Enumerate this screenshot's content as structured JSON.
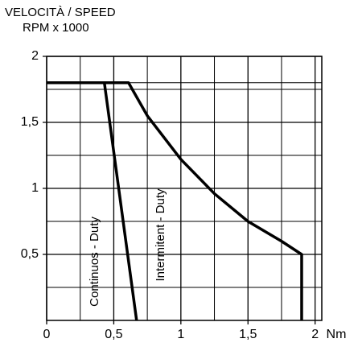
{
  "chart_data": {
    "type": "line",
    "title": "VELOCITÀ / SPEED",
    "subtitle": "RPM x 1000",
    "x_label": "Nm",
    "xlim": [
      0,
      2.05
    ],
    "ylim": [
      0,
      2
    ],
    "xticks": [
      0,
      {
        "value": 0.5,
        "label": "0,5"
      },
      1,
      {
        "value": 1.5,
        "label": "1,5"
      },
      2
    ],
    "yticks": [
      {
        "value": 0.5,
        "label": "0,5"
      },
      1,
      {
        "value": 1.5,
        "label": "1,5"
      },
      2
    ],
    "x_minor_grid": [
      0.25,
      0.75,
      1.25,
      1.75
    ],
    "y_minor_grid": [
      0.25,
      0.75,
      1.25,
      1.75,
      1.8
    ],
    "grid": true,
    "series": [
      {
        "name": "Continuos - Duty",
        "color": "#000000",
        "x": [
          0,
          0.43,
          0.67
        ],
        "values": [
          1.8,
          1.8,
          0
        ]
      },
      {
        "name": "Intermitent - Duty",
        "color": "#000000",
        "x": [
          0,
          0.61,
          0.75,
          1,
          1.25,
          1.5,
          1.75,
          1.9,
          1.9
        ],
        "values": [
          1.8,
          1.8,
          1.55,
          1.22,
          0.96,
          0.75,
          0.6,
          0.5,
          0
        ]
      }
    ]
  }
}
